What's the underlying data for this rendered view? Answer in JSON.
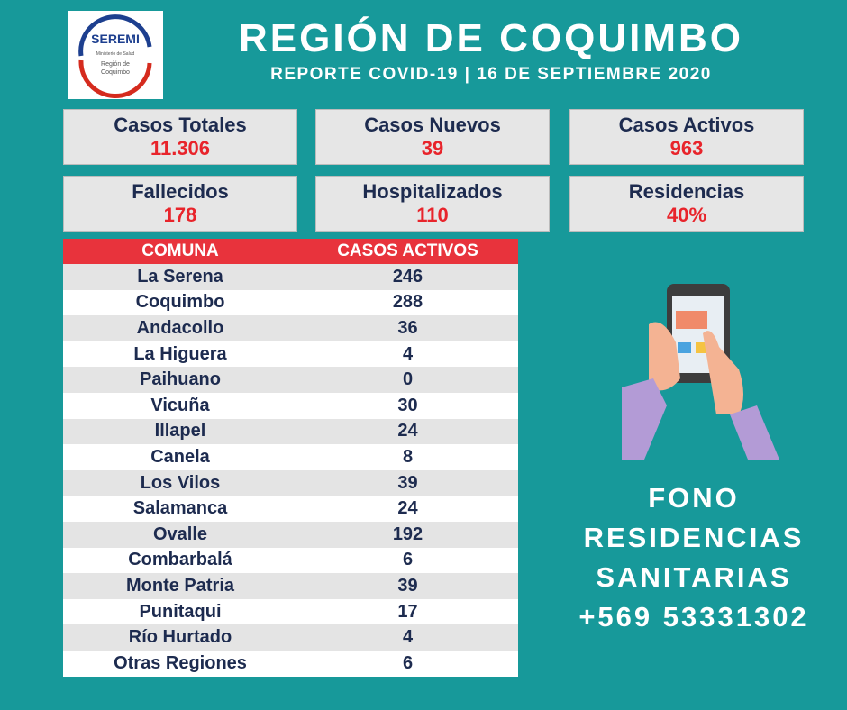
{
  "logo": {
    "name": "SEREMI",
    "ministry": "Ministerio de Salud",
    "region": "Región de Coquimbo"
  },
  "header": {
    "title": "REGIÓN DE COQUIMBO",
    "subtitle": "REPORTE COVID-19 | 16 DE SEPTIEMBRE 2020"
  },
  "stats": [
    {
      "label": "Casos Totales",
      "value": "11.306"
    },
    {
      "label": "Casos Nuevos",
      "value": "39"
    },
    {
      "label": "Casos Activos",
      "value": "963"
    },
    {
      "label": "Fallecidos",
      "value": "178"
    },
    {
      "label": "Hospitalizados",
      "value": "110"
    },
    {
      "label": "Residencias",
      "value": "40%"
    }
  ],
  "table": {
    "columns": [
      "COMUNA",
      "CASOS ACTIVOS"
    ],
    "rows": [
      [
        "La Serena",
        246
      ],
      [
        "Coquimbo",
        288
      ],
      [
        "Andacollo",
        36
      ],
      [
        "La Higuera",
        4
      ],
      [
        "Paihuano",
        0
      ],
      [
        "Vicuña",
        30
      ],
      [
        "Illapel",
        24
      ],
      [
        "Canela",
        8
      ],
      [
        "Los Vilos",
        39
      ],
      [
        "Salamanca",
        24
      ],
      [
        "Ovalle",
        192
      ],
      [
        "Combarbalá",
        6
      ],
      [
        "Monte Patria",
        39
      ],
      [
        "Punitaqui",
        17
      ],
      [
        "Río Hurtado",
        4
      ],
      [
        "Otras Regiones",
        6
      ]
    ]
  },
  "contact": {
    "lines": [
      "FONO RESIDENCIAS",
      "SANITARIAS",
      "+569 53331302"
    ]
  }
}
